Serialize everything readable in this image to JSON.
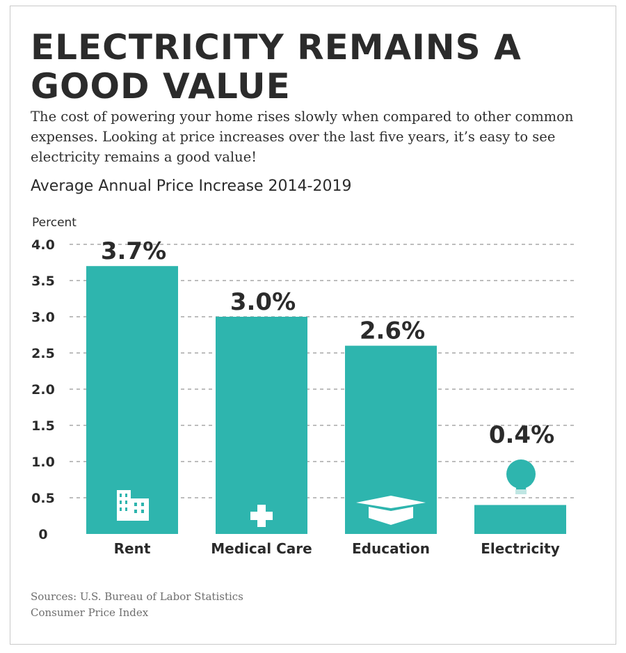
{
  "headline": "ELECTRICITY REMAINS A GOOD VALUE",
  "intro": "The cost of powering your home rises slowly when compared to other common expenses. Looking at price increases over the last five years, it’s easy to see electricity remains a good value!",
  "sources": [
    "Sources: U.S. Bureau of Labor Statistics",
    "Consumer Price Index"
  ],
  "colors": {
    "bar": "#2eb5ae",
    "text": "#2b2b2b",
    "grid": "#bdbdbd",
    "icon": "#ffffff"
  },
  "chart_data": {
    "type": "bar",
    "title": "Average Annual Price Increase 2014-2019",
    "ylabel": "Percent",
    "xlabel": "",
    "categories": [
      "Rent",
      "Medical Care",
      "Education",
      "Electricity"
    ],
    "values": [
      3.7,
      3.0,
      2.6,
      0.4
    ],
    "value_labels": [
      "3.7%",
      "3.0%",
      "2.6%",
      "0.4%"
    ],
    "ylim": [
      0,
      4.0
    ],
    "yticks": [
      "0",
      "0.5",
      "1.0",
      "1.5",
      "2.0",
      "2.5",
      "3.0",
      "3.5",
      "4.0"
    ],
    "ytick_values": [
      0,
      0.5,
      1.0,
      1.5,
      2.0,
      2.5,
      3.0,
      3.5,
      4.0
    ],
    "grid": true,
    "grid_style": "dashed",
    "legend": false,
    "icons": [
      "building-icon",
      "medical-cross-icon",
      "graduation-cap-icon",
      "light-bulb-icon"
    ]
  }
}
